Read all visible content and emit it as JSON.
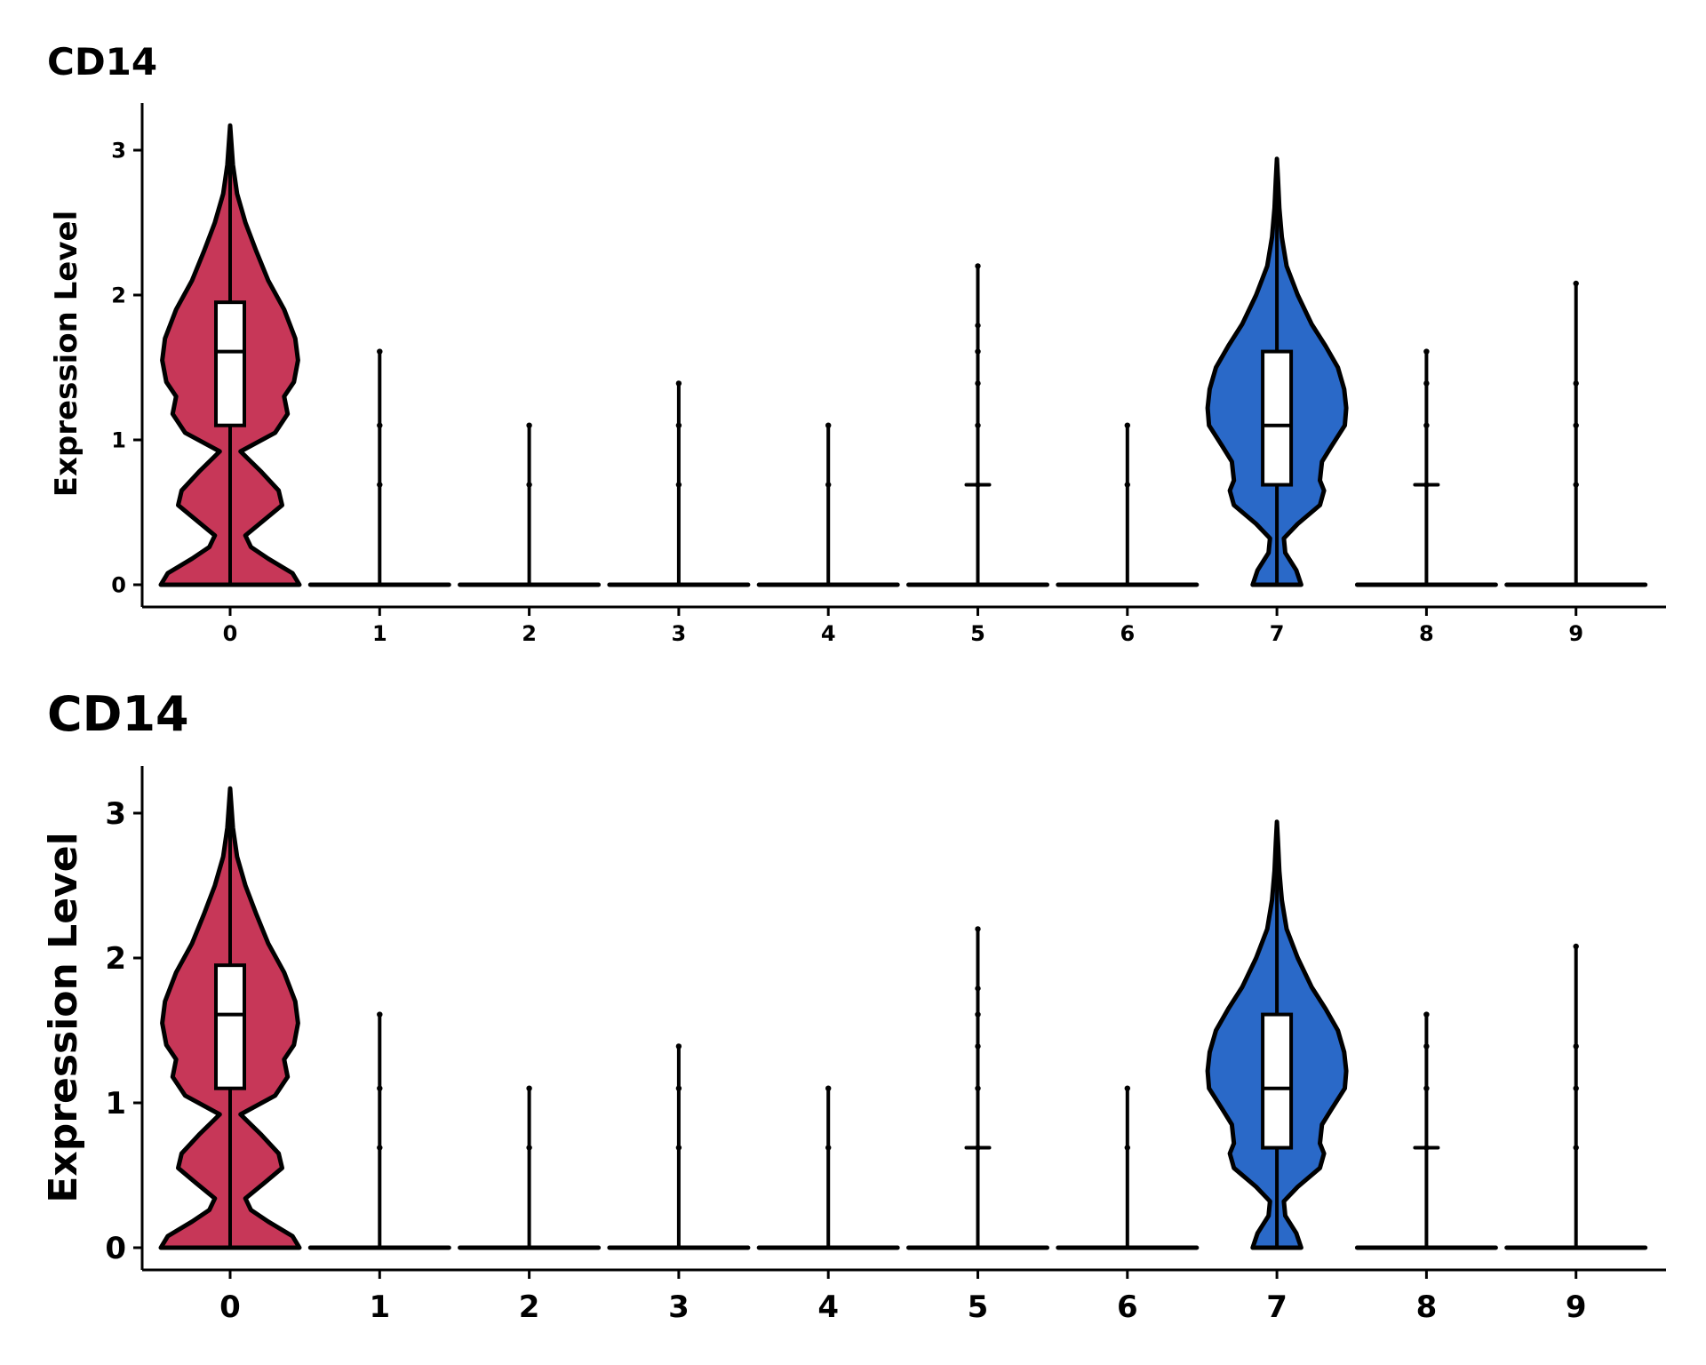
{
  "chart_data": [
    {
      "type": "violin",
      "title": "CD14",
      "xlabel": "",
      "ylabel": "Expression Level",
      "ylim": [
        0,
        3.3
      ],
      "yticks": [
        0,
        1,
        2,
        3
      ],
      "grid": false,
      "legend": "none",
      "categories": [
        "0",
        "1",
        "2",
        "3",
        "4",
        "5",
        "6",
        "7",
        "8",
        "9"
      ],
      "series": [
        {
          "category": "0",
          "color": "#C73758",
          "shape": "full",
          "max": 3.17,
          "box": {
            "q1": 1.1,
            "median": 1.61,
            "q3": 1.95
          },
          "points": []
        },
        {
          "category": "1",
          "color": "#000000",
          "shape": "zero",
          "max": 1.61,
          "box": null,
          "points": [
            1.1,
            0.69
          ]
        },
        {
          "category": "2",
          "color": "#000000",
          "shape": "zero",
          "max": 1.1,
          "box": null,
          "points": [
            0.69
          ]
        },
        {
          "category": "3",
          "color": "#000000",
          "shape": "zero",
          "max": 1.39,
          "box": null,
          "points": [
            1.1,
            0.69
          ]
        },
        {
          "category": "4",
          "color": "#000000",
          "shape": "zero",
          "max": 1.1,
          "box": null,
          "points": [
            0.69
          ]
        },
        {
          "category": "5",
          "color": "#000000",
          "shape": "zero",
          "max": 2.2,
          "box": null,
          "points": [
            1.79,
            1.61,
            1.39,
            1.1,
            0.69
          ]
        },
        {
          "category": "6",
          "color": "#000000",
          "shape": "zero",
          "max": 1.1,
          "box": null,
          "points": [
            0.69
          ]
        },
        {
          "category": "7",
          "color": "#2A69C8",
          "shape": "full",
          "max": 2.94,
          "box": {
            "q1": 0.69,
            "median": 1.1,
            "q3": 1.61
          },
          "points": []
        },
        {
          "category": "8",
          "color": "#000000",
          "shape": "zero",
          "max": 1.61,
          "box": null,
          "points": [
            1.39,
            1.1,
            0.69
          ]
        },
        {
          "category": "9",
          "color": "#000000",
          "shape": "zero",
          "max": 2.08,
          "box": null,
          "points": [
            1.39,
            1.1,
            0.69
          ]
        }
      ]
    },
    {
      "type": "violin",
      "title": "CD14",
      "xlabel": "",
      "ylabel": "Expression Level",
      "ylim": [
        0,
        3.3
      ],
      "yticks": [
        0,
        1,
        2,
        3
      ],
      "grid": false,
      "legend": "none",
      "categories": [
        "0",
        "1",
        "2",
        "3",
        "4",
        "5",
        "6",
        "7",
        "8",
        "9"
      ],
      "series": [
        {
          "category": "0",
          "color": "#C73758",
          "shape": "full",
          "max": 3.17,
          "box": {
            "q1": 1.1,
            "median": 1.61,
            "q3": 1.95
          },
          "points": []
        },
        {
          "category": "1",
          "color": "#000000",
          "shape": "zero",
          "max": 1.61,
          "box": null,
          "points": [
            1.1,
            0.69
          ]
        },
        {
          "category": "2",
          "color": "#000000",
          "shape": "zero",
          "max": 1.1,
          "box": null,
          "points": [
            0.69
          ]
        },
        {
          "category": "3",
          "color": "#000000",
          "shape": "zero",
          "max": 1.39,
          "box": null,
          "points": [
            1.1,
            0.69
          ]
        },
        {
          "category": "4",
          "color": "#000000",
          "shape": "zero",
          "max": 1.1,
          "box": null,
          "points": [
            0.69
          ]
        },
        {
          "category": "5",
          "color": "#000000",
          "shape": "zero",
          "max": 2.2,
          "box": null,
          "points": [
            1.79,
            1.61,
            1.39,
            1.1,
            0.69
          ]
        },
        {
          "category": "6",
          "color": "#000000",
          "shape": "zero",
          "max": 1.1,
          "box": null,
          "points": [
            0.69
          ]
        },
        {
          "category": "7",
          "color": "#2A69C8",
          "shape": "full",
          "max": 2.94,
          "box": {
            "q1": 0.69,
            "median": 1.1,
            "q3": 1.61
          },
          "points": []
        },
        {
          "category": "8",
          "color": "#000000",
          "shape": "zero",
          "max": 1.61,
          "box": null,
          "points": [
            1.39,
            1.1,
            0.69
          ]
        },
        {
          "category": "9",
          "color": "#000000",
          "shape": "zero",
          "max": 2.08,
          "box": null,
          "points": [
            1.39,
            1.1,
            0.69
          ]
        }
      ]
    }
  ]
}
